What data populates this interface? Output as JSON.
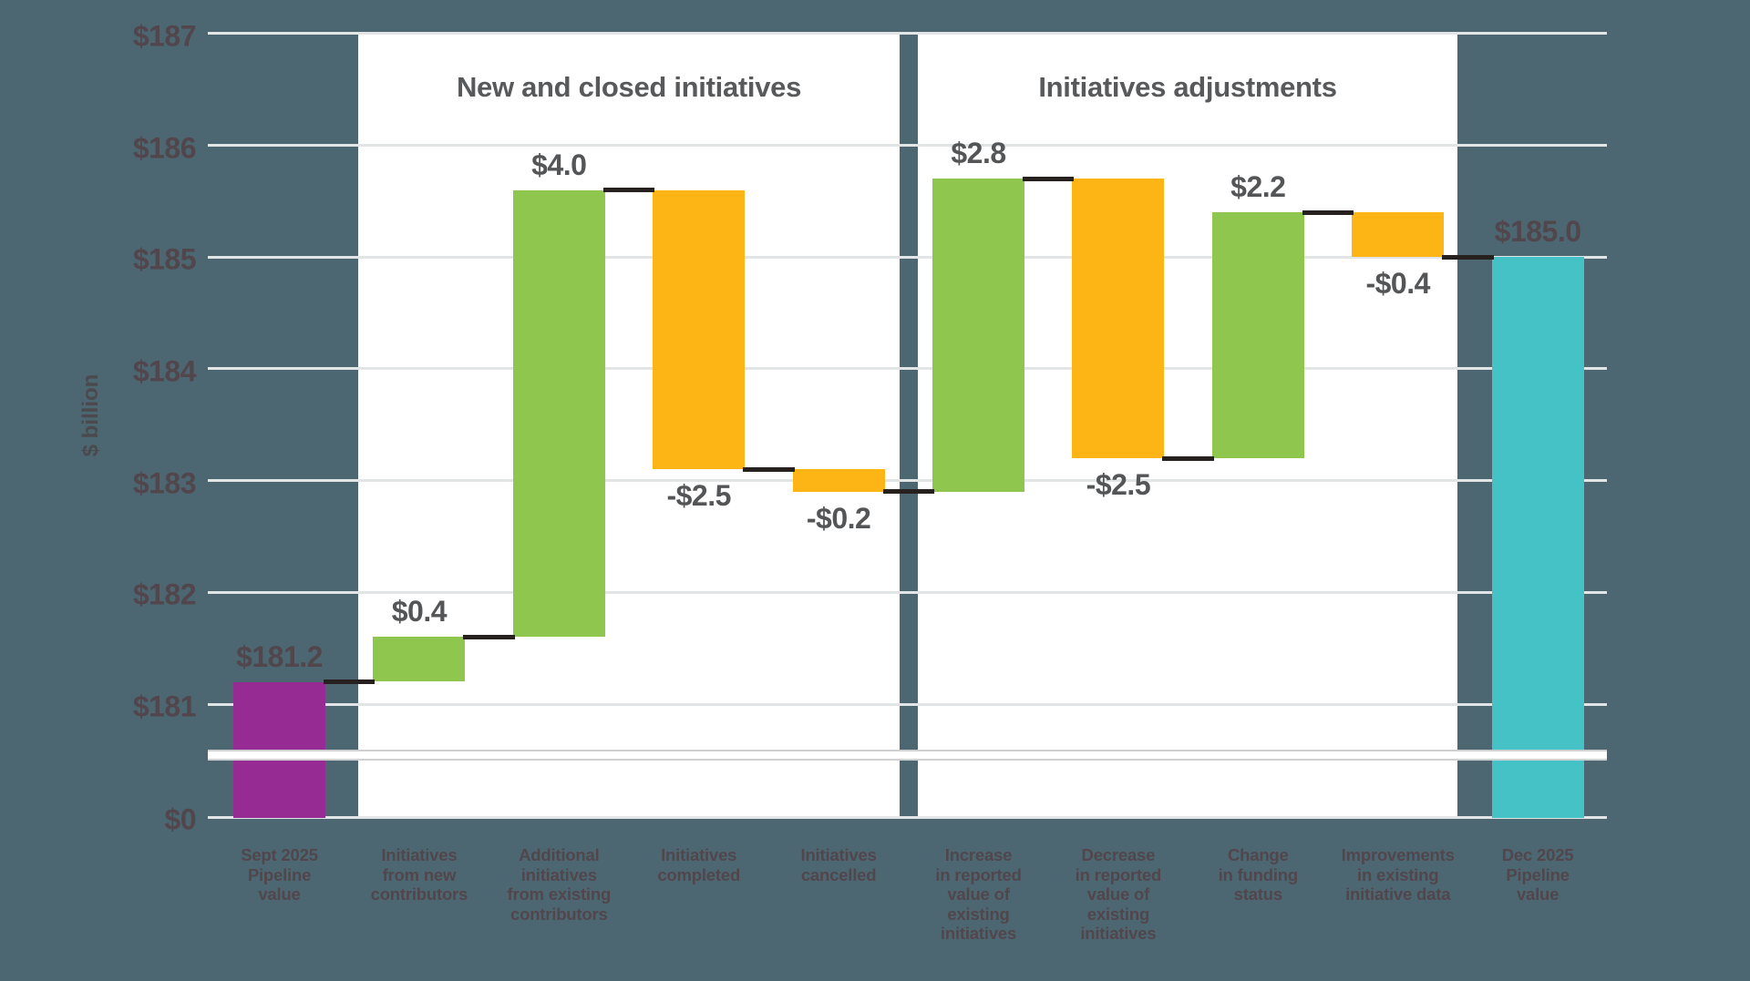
{
  "chart_data": {
    "type": "bar",
    "subtype": "waterfall",
    "ylabel": "$ billion",
    "ylim_display": [
      181,
      187
    ],
    "axis_break_between": [
      0,
      181
    ],
    "grid": true,
    "sections": [
      {
        "title": "New and closed initiatives"
      },
      {
        "title": "Initiatives adjustments"
      }
    ],
    "y_ticks": [
      {
        "label": "$187",
        "value": 187
      },
      {
        "label": "$186",
        "value": 186
      },
      {
        "label": "$185",
        "value": 185
      },
      {
        "label": "$184",
        "value": 184
      },
      {
        "label": "$183",
        "value": 183
      },
      {
        "label": "$182",
        "value": 182
      },
      {
        "label": "$181",
        "value": 181
      },
      {
        "label": "$0",
        "value": 0
      }
    ],
    "bars": [
      {
        "category": "Sept 2025 Pipeline value",
        "category_lines": [
          "Sept 2025",
          "Pipeline",
          "value"
        ],
        "kind": "total",
        "value": 181.2,
        "display_value": "$181.2",
        "color_key": "purple",
        "section": null
      },
      {
        "category": "Initiatives from new contributors",
        "category_lines": [
          "Initiatives",
          "from new",
          "contributors"
        ],
        "kind": "delta",
        "value": 0.4,
        "display_value": "$0.4",
        "color_key": "green",
        "section": 0
      },
      {
        "category": "Additional initiatives from existing contributors",
        "category_lines": [
          "Additional",
          "initiatives",
          "from existing",
          "contributors"
        ],
        "kind": "delta",
        "value": 4.0,
        "display_value": "$4.0",
        "color_key": "green",
        "section": 0
      },
      {
        "category": "Initiatives completed",
        "category_lines": [
          "Initiatives",
          "completed"
        ],
        "kind": "delta",
        "value": -2.5,
        "display_value": "-$2.5",
        "color_key": "yellow",
        "section": 0
      },
      {
        "category": "Initiatives cancelled",
        "category_lines": [
          "Initiatives",
          "cancelled"
        ],
        "kind": "delta",
        "value": -0.2,
        "display_value": "-$0.2",
        "color_key": "yellow",
        "section": 0
      },
      {
        "category": "Increase in reported value of existing initiatives",
        "category_lines": [
          "Increase",
          "in reported",
          "value of",
          "existing",
          "initiatives"
        ],
        "kind": "delta",
        "value": 2.8,
        "display_value": "$2.8",
        "color_key": "green",
        "section": 1
      },
      {
        "category": "Decrease in reported value of existing initiatives",
        "category_lines": [
          "Decrease",
          "in reported",
          "value of",
          "existing",
          "initiatives"
        ],
        "kind": "delta",
        "value": -2.5,
        "display_value": "-$2.5",
        "color_key": "yellow",
        "section": 1
      },
      {
        "category": "Change in funding status",
        "category_lines": [
          "Change",
          "in funding",
          "status"
        ],
        "kind": "delta",
        "value": 2.2,
        "display_value": "$2.2",
        "color_key": "green",
        "section": 1
      },
      {
        "category": "Improvements in existing initiative data",
        "category_lines": [
          "Improvements",
          "in existing",
          "initiative data"
        ],
        "kind": "delta",
        "value": -0.4,
        "display_value": "-$0.4",
        "color_key": "yellow",
        "section": 1
      },
      {
        "category": "Dec 2025 Pipeline value",
        "category_lines": [
          "Dec 2025",
          "Pipeline",
          "value"
        ],
        "kind": "total",
        "value": 185.0,
        "display_value": "$185.0",
        "color_key": "teal",
        "section": null
      }
    ],
    "colors": {
      "background": "#4c6771",
      "panel": "#ffffff",
      "purple": "#962b93",
      "green": "#8ec64e",
      "yellow": "#fcb515",
      "teal": "#45c2c6",
      "connector": "#26211f",
      "gridline": "#e2e5e6",
      "break_band_edge": "#cfd1d2",
      "label_on_dark": "#51464c",
      "label_on_light": "#545557",
      "section_title": "#58595b",
      "y_axis_title": "#4a4a4e"
    }
  }
}
